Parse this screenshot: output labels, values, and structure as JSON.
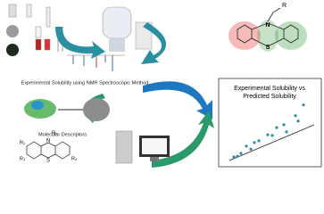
{
  "top_label": "Experimental Solubility using NMR Spectroscopic Method",
  "bottom_label": "Molecular Descriptors",
  "molecule_top": {
    "atoms": [
      "N",
      "S"
    ],
    "substituent": "R"
  },
  "molecule_bottom": {
    "atoms": [
      "N",
      "S"
    ],
    "substituents": [
      "R₁",
      "R₂",
      "R₃",
      "R₄"
    ]
  },
  "plot": {
    "type": "scatter",
    "title": [
      "Experimental Solubility vs",
      "Predicted Solubility"
    ],
    "x": [
      0.7,
      1.1,
      1.5,
      2.1,
      2.6,
      3.0,
      3.5,
      4.5,
      5.0,
      5.5,
      6.3,
      6.6,
      7.6,
      7.9,
      8.5
    ],
    "y": [
      0.9,
      1.0,
      1.5,
      2.7,
      2.2,
      3.3,
      3.6,
      4.6,
      4.5,
      5.8,
      6.3,
      5.1,
      7.8,
      6.9,
      9.6
    ],
    "xlim": [
      0,
      10
    ],
    "ylim": [
      0,
      10
    ],
    "color": "#2a8fa0"
  }
}
